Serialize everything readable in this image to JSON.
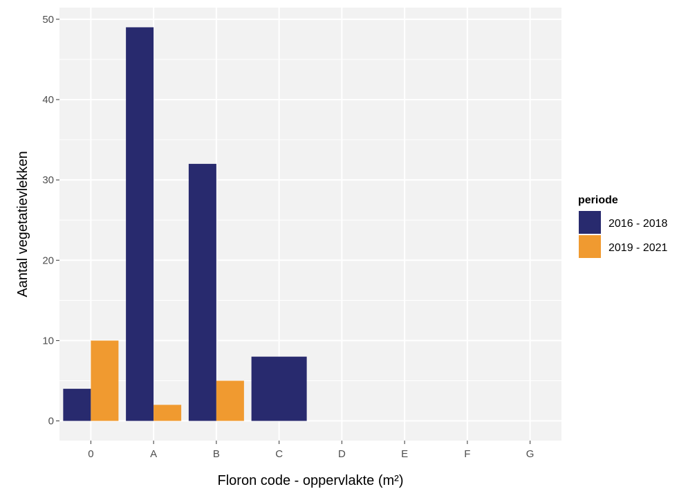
{
  "chart_data": {
    "type": "bar",
    "title": "",
    "xlabel": "Floron code - oppervlakte (m²)",
    "ylabel": "Aantal vegetatievlekken",
    "categories": [
      "0",
      "A",
      "B",
      "C",
      "D",
      "E",
      "F",
      "G"
    ],
    "yticks": [
      0,
      10,
      20,
      30,
      40,
      50
    ],
    "ylim": [
      -2.45,
      51.45
    ],
    "legend": {
      "title": "periode",
      "position": "right"
    },
    "series": [
      {
        "name": "2016 - 2018",
        "color": "#282a6e",
        "values": [
          4,
          49,
          32,
          8,
          null,
          null,
          null,
          null
        ]
      },
      {
        "name": "2019 - 2021",
        "color": "#f09a30",
        "values": [
          10,
          2,
          5,
          null,
          null,
          null,
          null,
          null
        ]
      }
    ]
  }
}
